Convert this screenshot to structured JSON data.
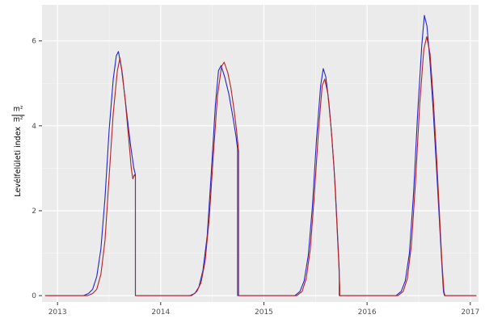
{
  "figure": {
    "background": "#FFFFFF",
    "panel_background": "#EBEBEB",
    "grid_major_color": "#FFFFFF",
    "grid_minor_color": "#FFFFFF",
    "grid_minor_opacity": 0.55,
    "tick_mark_color": "#333333",
    "tick_label_color": "#4D4D4D"
  },
  "chart_data": {
    "type": "line",
    "title": "",
    "xlabel": "",
    "ylabel": "Levélfelületi index m²/m²",
    "ylabel_text": "Levélfelületi index",
    "unit_numerator": "m²",
    "unit_denominator": "m²",
    "legend": "none",
    "grid": true,
    "xlim": [
      2012.85,
      2017.08
    ],
    "ylim": [
      -0.15,
      6.85
    ],
    "x_ticks": [
      2013,
      2014,
      2015,
      2016,
      2017
    ],
    "x_tick_labels": [
      "2013",
      "2014",
      "2015",
      "2016",
      "2017"
    ],
    "y_ticks": [
      0,
      2,
      4,
      6
    ],
    "y_tick_labels": [
      "0",
      "2",
      "4",
      "6"
    ],
    "x_minor": [
      2013.5,
      2014.5,
      2015.5,
      2016.5
    ],
    "y_minor": [
      1,
      3,
      5
    ],
    "series": [
      {
        "name": "simulated-lai-blue",
        "color": "#2424CC",
        "points": [
          [
            2012.88,
            0
          ],
          [
            2013.25,
            0
          ],
          [
            2013.3,
            0.05
          ],
          [
            2013.34,
            0.15
          ],
          [
            2013.38,
            0.45
          ],
          [
            2013.42,
            1.1
          ],
          [
            2013.46,
            2.3
          ],
          [
            2013.5,
            3.9
          ],
          [
            2013.54,
            5.1
          ],
          [
            2013.57,
            5.65
          ],
          [
            2013.59,
            5.75
          ],
          [
            2013.62,
            5.35
          ],
          [
            2013.65,
            4.75
          ],
          [
            2013.68,
            4.1
          ],
          [
            2013.71,
            3.5
          ],
          [
            2013.74,
            3.0
          ],
          [
            2013.755,
            2.85
          ],
          [
            2013.755,
            0
          ],
          [
            2014.28,
            0
          ],
          [
            2014.33,
            0.05
          ],
          [
            2014.37,
            0.2
          ],
          [
            2014.41,
            0.6
          ],
          [
            2014.45,
            1.4
          ],
          [
            2014.49,
            2.9
          ],
          [
            2014.53,
            4.5
          ],
          [
            2014.56,
            5.3
          ],
          [
            2014.585,
            5.42
          ],
          [
            2014.62,
            5.15
          ],
          [
            2014.66,
            4.75
          ],
          [
            2014.7,
            4.2
          ],
          [
            2014.73,
            3.75
          ],
          [
            2014.745,
            3.45
          ],
          [
            2014.745,
            0
          ],
          [
            2015.3,
            0
          ],
          [
            2015.35,
            0.1
          ],
          [
            2015.39,
            0.35
          ],
          [
            2015.43,
            0.95
          ],
          [
            2015.47,
            2.1
          ],
          [
            2015.51,
            3.7
          ],
          [
            2015.55,
            4.95
          ],
          [
            2015.575,
            5.35
          ],
          [
            2015.6,
            5.15
          ],
          [
            2015.63,
            4.55
          ],
          [
            2015.66,
            3.7
          ],
          [
            2015.69,
            2.6
          ],
          [
            2015.715,
            1.4
          ],
          [
            2015.73,
            0.6
          ],
          [
            2015.73,
            0
          ],
          [
            2016.28,
            0
          ],
          [
            2016.33,
            0.1
          ],
          [
            2016.37,
            0.35
          ],
          [
            2016.41,
            1.0
          ],
          [
            2016.45,
            2.4
          ],
          [
            2016.49,
            4.3
          ],
          [
            2016.53,
            5.9
          ],
          [
            2016.555,
            6.6
          ],
          [
            2016.58,
            6.35
          ],
          [
            2016.61,
            5.5
          ],
          [
            2016.64,
            4.4
          ],
          [
            2016.67,
            3.1
          ],
          [
            2016.7,
            1.8
          ],
          [
            2016.725,
            0.7
          ],
          [
            2016.74,
            0.1
          ],
          [
            2016.75,
            0
          ],
          [
            2017.06,
            0
          ]
        ]
      },
      {
        "name": "measured-lai-red",
        "color": "#B22222",
        "points": [
          [
            2012.88,
            0
          ],
          [
            2013.29,
            0
          ],
          [
            2013.34,
            0.05
          ],
          [
            2013.38,
            0.15
          ],
          [
            2013.42,
            0.5
          ],
          [
            2013.46,
            1.3
          ],
          [
            2013.5,
            2.8
          ],
          [
            2013.54,
            4.3
          ],
          [
            2013.58,
            5.3
          ],
          [
            2013.605,
            5.6
          ],
          [
            2013.63,
            5.2
          ],
          [
            2013.66,
            4.5
          ],
          [
            2013.69,
            3.7
          ],
          [
            2013.715,
            3.0
          ],
          [
            2013.73,
            2.75
          ],
          [
            2013.745,
            2.85
          ],
          [
            2013.755,
            2.8
          ],
          [
            2013.755,
            0
          ],
          [
            2014.3,
            0
          ],
          [
            2014.35,
            0.1
          ],
          [
            2014.39,
            0.3
          ],
          [
            2014.43,
            0.8
          ],
          [
            2014.47,
            1.8
          ],
          [
            2014.51,
            3.3
          ],
          [
            2014.55,
            4.7
          ],
          [
            2014.59,
            5.4
          ],
          [
            2014.615,
            5.5
          ],
          [
            2014.65,
            5.25
          ],
          [
            2014.68,
            4.9
          ],
          [
            2014.71,
            4.4
          ],
          [
            2014.735,
            3.9
          ],
          [
            2014.755,
            3.4
          ],
          [
            2014.755,
            0
          ],
          [
            2015.32,
            0
          ],
          [
            2015.37,
            0.1
          ],
          [
            2015.41,
            0.4
          ],
          [
            2015.45,
            1.1
          ],
          [
            2015.49,
            2.4
          ],
          [
            2015.53,
            3.9
          ],
          [
            2015.565,
            4.95
          ],
          [
            2015.59,
            5.1
          ],
          [
            2015.62,
            4.75
          ],
          [
            2015.65,
            4.0
          ],
          [
            2015.68,
            3.0
          ],
          [
            2015.705,
            1.8
          ],
          [
            2015.725,
            0.8
          ],
          [
            2015.735,
            0.2
          ],
          [
            2015.735,
            0
          ],
          [
            2016.3,
            0
          ],
          [
            2016.35,
            0.1
          ],
          [
            2016.39,
            0.4
          ],
          [
            2016.43,
            1.2
          ],
          [
            2016.47,
            2.7
          ],
          [
            2016.51,
            4.5
          ],
          [
            2016.55,
            5.8
          ],
          [
            2016.578,
            6.1
          ],
          [
            2016.61,
            5.7
          ],
          [
            2016.64,
            4.7
          ],
          [
            2016.67,
            3.4
          ],
          [
            2016.7,
            2.0
          ],
          [
            2016.725,
            0.8
          ],
          [
            2016.745,
            0.1
          ],
          [
            2016.755,
            0
          ],
          [
            2017.06,
            0
          ]
        ]
      }
    ]
  }
}
